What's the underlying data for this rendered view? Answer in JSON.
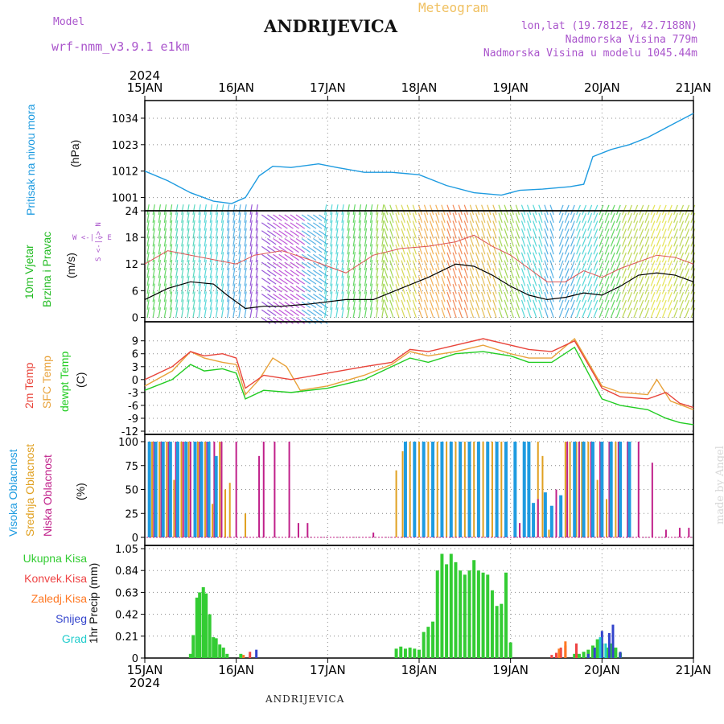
{
  "header": {
    "model_label": "Model",
    "model_name": "wrf-nmm_v3.9.1 e1km",
    "title": "ANDRIJEVICA",
    "meteogram_label": "Meteogram",
    "lonlat": "lon,lat (19.7812E, 42.7188N)",
    "elevation": "Nadmorska Visina 779m",
    "model_elevation": "Nadmorska Visina u modelu 1045.44m",
    "bottom_title": "ANDRIJEVICA",
    "credit": "made by Angel"
  },
  "colors": {
    "pressure": "#1e9be0",
    "wind_label": "#22bb22",
    "temp2m": "#e8443a",
    "sfc_temp": "#e8a23a",
    "dewpt": "#22cc22",
    "cloud_high": "#1e9be0",
    "cloud_mid": "#e0a020",
    "cloud_low": "#c0208a",
    "precip_total": "#33cc33",
    "precip_conv": "#ee4444",
    "precip_frozen": "#ff7722",
    "precip_snow": "#3344cc",
    "precip_graupel": "#22cccc",
    "header_purple": "#aa55cc",
    "header_orange": "#f0c060"
  },
  "chart_data": {
    "type": "meteogram",
    "time_axis": {
      "year": "2024",
      "ticks": [
        "15JAN",
        "16JAN",
        "17JAN",
        "18JAN",
        "19JAN",
        "20JAN",
        "21JAN"
      ]
    },
    "panels": [
      {
        "id": "pressure",
        "type": "line",
        "labels": [
          "Pritisak na nivou mora",
          "(hPa)"
        ],
        "yticks": [
          1001,
          1012,
          1023,
          1034
        ],
        "ylim": [
          995.5,
          1039
        ],
        "series": [
          {
            "x": [
              0,
              0.25,
              0.5,
              0.75,
              0.95,
              1.1,
              1.25,
              1.4,
              1.6,
              1.9,
              2.1,
              2.4,
              2.7,
              3.0,
              3.3,
              3.6,
              3.9,
              4.1,
              4.35,
              4.65,
              4.8,
              4.9,
              5.1,
              5.3,
              5.5,
              5.7,
              5.85,
              6.0
            ],
            "y": [
              1012,
              1008,
              1003,
              999.5,
              998.5,
              1001,
              1010,
              1014,
              1013.5,
              1015,
              1013.5,
              1011.5,
              1011.5,
              1010.5,
              1006,
              1003,
              1002,
              1004,
              1004.5,
              1005.5,
              1006.5,
              1018,
              1021,
              1023,
              1026,
              1030,
              1033,
              1036
            ]
          }
        ]
      },
      {
        "id": "wind",
        "type": "line",
        "labels": [
          "10m Vjetar",
          "Brzina i Pravac",
          "(m/s)"
        ],
        "direction_key": [
          "W",
          "<-|->",
          "E",
          "S",
          "<-",
          "->",
          "N"
        ],
        "yticks": [
          0,
          6,
          12,
          18,
          24
        ],
        "ylim": [
          -1,
          24
        ],
        "series": [
          {
            "name": "speed",
            "x": [
              0,
              0.25,
              0.5,
              0.75,
              0.9,
              1.0,
              1.1,
              1.3,
              1.5,
              1.8,
              2.2,
              2.5,
              2.8,
              3.1,
              3.4,
              3.6,
              3.8,
              4.0,
              4.2,
              4.4,
              4.6,
              4.8,
              5.0,
              5.2,
              5.4,
              5.6,
              5.8,
              6.0
            ],
            "y": [
              4,
              6.5,
              8,
              7.5,
              5,
              3.5,
              2,
              2.5,
              2.5,
              3,
              4,
              4,
              6.5,
              9,
              12,
              11.5,
              9.5,
              7,
              5,
              4,
              4.5,
              5.5,
              5,
              7,
              9.5,
              10,
              9.5,
              8
            ]
          },
          {
            "name": "gust",
            "x": [
              0,
              0.25,
              0.5,
              0.75,
              1.0,
              1.2,
              1.5,
              1.8,
              2.2,
              2.5,
              2.8,
              3.1,
              3.4,
              3.6,
              3.8,
              4.0,
              4.2,
              4.4,
              4.6,
              4.8,
              5.0,
              5.2,
              5.4,
              5.6,
              5.8,
              6.0
            ],
            "y": [
              12,
              15,
              14,
              13,
              12,
              14,
              15,
              13,
              10,
              14,
              15.5,
              16,
              17,
              18.5,
              16,
              14,
              11,
              8,
              8,
              10.5,
              9,
              11,
              12.5,
              14,
              13.5,
              12
            ]
          }
        ]
      },
      {
        "id": "temperature",
        "type": "line",
        "labels": [
          "2m Temp",
          "SFC Temp",
          "dewpt Temp",
          "(C)"
        ],
        "yticks": [
          -12,
          -9,
          -6,
          -3,
          0,
          3,
          6,
          9
        ],
        "ylim": [
          -12,
          11
        ],
        "series": [
          {
            "name": "2m Temp",
            "x": [
              0,
              0.3,
              0.5,
              0.65,
              0.85,
              1.0,
              1.1,
              1.3,
              1.6,
              2.0,
              2.4,
              2.7,
              2.9,
              3.1,
              3.4,
              3.7,
              4.0,
              4.2,
              4.45,
              4.7,
              5.0,
              5.2,
              5.5,
              5.7,
              5.85,
              6.0
            ],
            "y": [
              0,
              3,
              6.5,
              5.5,
              6,
              5,
              -2,
              1,
              0,
              1.5,
              3,
              4,
              7,
              6.5,
              8,
              9.5,
              8,
              7,
              6.5,
              9,
              -2,
              -4,
              -4.5,
              -3,
              -5.5,
              -6.5
            ]
          },
          {
            "name": "SFC Temp",
            "x": [
              0,
              0.3,
              0.5,
              0.65,
              0.85,
              1.0,
              1.1,
              1.25,
              1.4,
              1.55,
              1.7,
              2.0,
              2.4,
              2.7,
              2.9,
              3.1,
              3.4,
              3.7,
              4.0,
              4.2,
              4.45,
              4.7,
              5.0,
              5.2,
              5.5,
              5.6,
              5.75,
              6.0
            ],
            "y": [
              -1.5,
              2,
              6.5,
              5,
              4,
              3.5,
              -3.5,
              0,
              5,
              3,
              -2.5,
              -1.5,
              1,
              3.5,
              6.5,
              5.5,
              6.5,
              8,
              6,
              5,
              5,
              9.5,
              -1.5,
              -3,
              -3.5,
              0,
              -5,
              -7
            ]
          },
          {
            "name": "dewpt Temp",
            "x": [
              0,
              0.3,
              0.5,
              0.65,
              0.85,
              1.0,
              1.1,
              1.3,
              1.6,
              2.0,
              2.4,
              2.7,
              2.9,
              3.1,
              3.4,
              3.7,
              4.0,
              4.2,
              4.45,
              4.7,
              5.0,
              5.2,
              5.5,
              5.7,
              5.85,
              6.0
            ],
            "y": [
              -2.5,
              0,
              3.5,
              2,
              2.5,
              1.5,
              -4.5,
              -2.5,
              -3,
              -2,
              0,
              3,
              5,
              4,
              6,
              6.5,
              5.5,
              4,
              4,
              7.5,
              -4.5,
              -6,
              -7,
              -9,
              -10,
              -10.5
            ]
          }
        ]
      },
      {
        "id": "clouds",
        "type": "bar",
        "labels": [
          "Visoka Oblacnost",
          "Srednja Oblacnost",
          "Niska Oblacnost",
          "(%)"
        ],
        "yticks": [
          0,
          25,
          50,
          75,
          100
        ],
        "ylim": [
          0,
          100
        ],
        "series": [
          {
            "name": "Visoka Oblacnost",
            "x": [
              0.05,
              0.12,
              0.2,
              0.28,
              0.36,
              0.45,
              0.55,
              0.62,
              0.7,
              0.78,
              2.85,
              2.95,
              3.05,
              3.15,
              3.25,
              3.35,
              3.45,
              3.55,
              3.65,
              3.75,
              3.85,
              3.95,
              4.05,
              4.15,
              4.2,
              4.25,
              4.38,
              4.45,
              4.55,
              4.7,
              4.8,
              4.9,
              5.0,
              5.1,
              5.2,
              5.3
            ],
            "y": [
              100,
              100,
              100,
              100,
              100,
              100,
              100,
              100,
              100,
              85,
              100,
              100,
              100,
              100,
              100,
              100,
              100,
              100,
              100,
              100,
              100,
              100,
              100,
              100,
              100,
              36,
              47,
              33,
              44,
              100,
              100,
              100,
              100,
              100,
              100,
              100
            ]
          },
          {
            "name": "Srednja Oblacnost",
            "x": [
              0.08,
              0.16,
              0.24,
              0.32,
              0.4,
              0.48,
              0.58,
              0.66,
              0.74,
              0.82,
              0.88,
              0.93,
              1.1,
              2.75,
              2.82,
              2.9,
              3.0,
              3.1,
              3.2,
              3.3,
              3.4,
              3.5,
              3.6,
              3.7,
              3.8,
              3.9,
              4.3,
              4.35,
              4.42,
              4.6,
              4.65,
              4.72,
              4.78,
              4.85,
              4.95,
              5.05,
              5.15
            ],
            "y": [
              100,
              100,
              100,
              60,
              100,
              100,
              100,
              100,
              35,
              100,
              50,
              57,
              25,
              70,
              90,
              100,
              100,
              100,
              100,
              100,
              100,
              100,
              100,
              100,
              100,
              100,
              100,
              85,
              8,
              100,
              100,
              100,
              100,
              100,
              60,
              40,
              100
            ]
          },
          {
            "name": "Niska Oblacnost",
            "x": [
              0.1,
              0.18,
              0.26,
              0.34,
              0.42,
              0.5,
              0.6,
              0.68,
              0.76,
              0.84,
              1.0,
              1.25,
              1.3,
              1.42,
              1.58,
              1.68,
              1.78,
              2.5,
              4.1,
              4.3,
              4.5,
              4.62,
              4.75,
              4.88,
              4.98,
              5.08,
              5.18,
              5.28,
              5.4,
              5.55,
              5.7,
              5.85,
              5.95
            ],
            "y": [
              100,
              100,
              100,
              100,
              100,
              100,
              100,
              100,
              100,
              100,
              100,
              85,
              100,
              100,
              100,
              15,
              15,
              5,
              15,
              40,
              50,
              100,
              100,
              100,
              100,
              100,
              100,
              100,
              100,
              78,
              8,
              10,
              10
            ]
          }
        ]
      },
      {
        "id": "precip",
        "type": "bar",
        "labels": [
          "Ukupna Kisa",
          "Konvek.Kisa",
          "Zaledj.Kisa",
          "Snijeg",
          "Grad",
          "1hr Precip (mm)"
        ],
        "yticks": [
          0,
          0.21,
          0.42,
          0.63,
          0.84,
          1.05
        ],
        "ylim": [
          0,
          1.05
        ],
        "series": [
          {
            "name": "Ukupna Kisa",
            "x": [
              0.5,
              0.53,
              0.57,
              0.6,
              0.64,
              0.67,
              0.71,
              0.75,
              0.78,
              0.82,
              0.86,
              0.9,
              1.05,
              2.75,
              2.8,
              2.85,
              2.9,
              2.95,
              3.0,
              3.05,
              3.1,
              3.15,
              3.2,
              3.25,
              3.3,
              3.35,
              3.4,
              3.45,
              3.5,
              3.55,
              3.6,
              3.65,
              3.7,
              3.75,
              3.8,
              3.85,
              3.9,
              3.95,
              4.0,
              4.7,
              4.75,
              4.8,
              4.85,
              4.9,
              4.95,
              5.0,
              5.05,
              5.1,
              5.15,
              5.2
            ],
            "y": [
              0.04,
              0.22,
              0.58,
              0.63,
              0.68,
              0.62,
              0.42,
              0.2,
              0.19,
              0.13,
              0.1,
              0.04,
              0.04,
              0.09,
              0.11,
              0.09,
              0.1,
              0.09,
              0.08,
              0.25,
              0.3,
              0.35,
              0.84,
              1.0,
              0.9,
              1.0,
              0.92,
              0.84,
              0.8,
              0.84,
              0.94,
              0.84,
              0.82,
              0.8,
              0.65,
              0.5,
              0.52,
              0.82,
              0.15,
              0.04,
              0.04,
              0.06,
              0.08,
              0.12,
              0.18,
              0.14,
              0.1,
              0.14,
              0.1,
              0.05
            ]
          },
          {
            "name": "Konvek.Kisa",
            "x": [
              1.15,
              4.45,
              4.5,
              4.55,
              4.6,
              4.72
            ],
            "y": [
              0.06,
              0.03,
              0.05,
              0.1,
              0.12,
              0.14
            ]
          },
          {
            "name": "Zaledj.Kisa",
            "x": [
              1.08,
              4.53,
              4.6
            ],
            "y": [
              0.03,
              0.09,
              0.16
            ]
          },
          {
            "name": "Snijeg",
            "x": [
              1.22,
              4.85,
              4.92,
              5.0,
              5.08,
              5.12,
              5.2
            ],
            "y": [
              0.08,
              0.04,
              0.1,
              0.26,
              0.24,
              0.32,
              0.06
            ]
          },
          {
            "name": "Grad",
            "x": [
              4.98,
              5.04
            ],
            "y": [
              0.2,
              0.14
            ]
          }
        ]
      }
    ]
  }
}
